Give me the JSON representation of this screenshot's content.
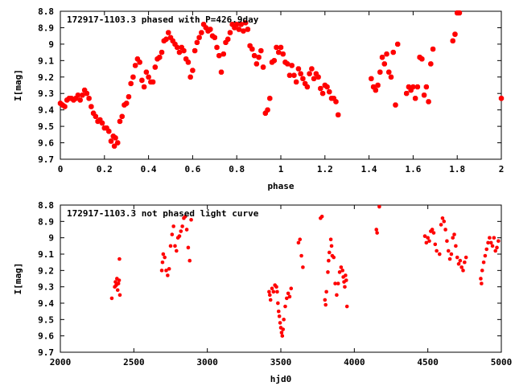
{
  "chart_data": [
    {
      "type": "scatter",
      "title": "172917-1103.3 phased with P=426.9day",
      "xlabel": "phase",
      "ylabel": "I[mag]",
      "xlim": [
        0,
        2
      ],
      "ylim": [
        9.7,
        8.8
      ],
      "y_inverted": true,
      "x_ticks": [
        0,
        0.2,
        0.4,
        0.6,
        0.8,
        1,
        1.2,
        1.4,
        1.6,
        1.8,
        2
      ],
      "x_tick_labels": [
        "0",
        "0.2",
        "0.4",
        "0.6",
        "0.8",
        "1",
        "1.2",
        "1.4",
        "1.6",
        "1.8",
        "2"
      ],
      "y_ticks": [
        8.8,
        8.9,
        9.0,
        9.1,
        9.2,
        9.3,
        9.4,
        9.5,
        9.6,
        9.7
      ],
      "y_tick_labels": [
        "8.8",
        "8.9",
        "9",
        "9.1",
        "9.2",
        "9.3",
        "9.4",
        "9.5",
        "9.6",
        "9.7"
      ],
      "grid": false,
      "marker_color": "#ff0000",
      "points": [
        [
          0.0,
          9.36
        ],
        [
          0.01,
          9.37
        ],
        [
          0.02,
          9.38
        ],
        [
          0.03,
          9.34
        ],
        [
          0.04,
          9.33
        ],
        [
          0.05,
          9.33
        ],
        [
          0.06,
          9.34
        ],
        [
          0.07,
          9.33
        ],
        [
          0.08,
          9.31
        ],
        [
          0.09,
          9.34
        ],
        [
          0.1,
          9.31
        ],
        [
          0.11,
          9.28
        ],
        [
          0.12,
          9.3
        ],
        [
          0.13,
          9.33
        ],
        [
          0.14,
          9.38
        ],
        [
          0.15,
          9.42
        ],
        [
          0.16,
          9.44
        ],
        [
          0.17,
          9.47
        ],
        [
          0.18,
          9.46
        ],
        [
          0.19,
          9.48
        ],
        [
          0.2,
          9.51
        ],
        [
          0.21,
          9.51
        ],
        [
          0.22,
          9.53
        ],
        [
          0.23,
          9.59
        ],
        [
          0.24,
          9.56
        ],
        [
          0.245,
          9.62
        ],
        [
          0.25,
          9.57
        ],
        [
          0.26,
          9.6
        ],
        [
          0.27,
          9.47
        ],
        [
          0.28,
          9.44
        ],
        [
          0.29,
          9.37
        ],
        [
          0.3,
          9.36
        ],
        [
          0.31,
          9.32
        ],
        [
          0.32,
          9.24
        ],
        [
          0.33,
          9.2
        ],
        [
          0.34,
          9.13
        ],
        [
          0.35,
          9.09
        ],
        [
          0.36,
          9.11
        ],
        [
          0.37,
          9.22
        ],
        [
          0.38,
          9.26
        ],
        [
          0.39,
          9.17
        ],
        [
          0.4,
          9.2
        ],
        [
          0.41,
          9.23
        ],
        [
          0.42,
          9.23
        ],
        [
          0.43,
          9.14
        ],
        [
          0.44,
          9.09
        ],
        [
          0.45,
          9.08
        ],
        [
          0.46,
          9.05
        ],
        [
          0.47,
          8.98
        ],
        [
          0.48,
          8.97
        ],
        [
          0.49,
          8.93
        ],
        [
          0.5,
          8.96
        ],
        [
          0.51,
          8.98
        ],
        [
          0.52,
          9.0
        ],
        [
          0.53,
          9.02
        ],
        [
          0.54,
          9.05
        ],
        [
          0.55,
          9.02
        ],
        [
          0.56,
          9.04
        ],
        [
          0.57,
          9.09
        ],
        [
          0.58,
          9.11
        ],
        [
          0.59,
          9.2
        ],
        [
          0.6,
          9.16
        ],
        [
          0.61,
          9.04
        ],
        [
          0.62,
          8.99
        ],
        [
          0.63,
          8.96
        ],
        [
          0.64,
          8.93
        ],
        [
          0.65,
          8.88
        ],
        [
          0.66,
          8.9
        ],
        [
          0.67,
          8.92
        ],
        [
          0.68,
          8.91
        ],
        [
          0.69,
          8.95
        ],
        [
          0.7,
          8.96
        ],
        [
          0.71,
          9.02
        ],
        [
          0.72,
          9.07
        ],
        [
          0.73,
          9.17
        ],
        [
          0.74,
          9.06
        ],
        [
          0.75,
          8.99
        ],
        [
          0.76,
          8.97
        ],
        [
          0.77,
          8.93
        ],
        [
          0.78,
          8.88
        ],
        [
          0.79,
          8.9
        ],
        [
          0.8,
          8.88
        ],
        [
          0.81,
          8.91
        ],
        [
          0.82,
          8.88
        ],
        [
          0.83,
          8.92
        ],
        [
          0.84,
          8.87
        ],
        [
          0.85,
          8.91
        ],
        [
          0.86,
          9.01
        ],
        [
          0.87,
          9.03
        ],
        [
          0.88,
          9.07
        ],
        [
          0.89,
          9.12
        ],
        [
          0.9,
          9.08
        ],
        [
          0.91,
          9.04
        ],
        [
          0.92,
          9.14
        ],
        [
          0.93,
          9.42
        ],
        [
          0.94,
          9.4
        ],
        [
          0.95,
          9.33
        ],
        [
          0.96,
          9.11
        ],
        [
          0.97,
          9.1
        ],
        [
          0.98,
          9.02
        ],
        [
          0.99,
          9.05
        ],
        [
          1.0,
          9.02
        ],
        [
          1.01,
          9.06
        ],
        [
          1.02,
          9.11
        ],
        [
          1.03,
          9.12
        ],
        [
          1.04,
          9.19
        ],
        [
          1.05,
          9.13
        ],
        [
          1.06,
          9.19
        ],
        [
          1.07,
          9.23
        ],
        [
          1.08,
          9.15
        ],
        [
          1.09,
          9.18
        ],
        [
          1.1,
          9.21
        ],
        [
          1.11,
          9.24
        ],
        [
          1.12,
          9.26
        ],
        [
          1.13,
          9.18
        ],
        [
          1.14,
          9.15
        ],
        [
          1.15,
          9.21
        ],
        [
          1.16,
          9.18
        ],
        [
          1.17,
          9.2
        ],
        [
          1.18,
          9.27
        ],
        [
          1.19,
          9.3
        ],
        [
          1.2,
          9.25
        ],
        [
          1.21,
          9.26
        ],
        [
          1.22,
          9.29
        ],
        [
          1.23,
          9.33
        ],
        [
          1.24,
          9.33
        ],
        [
          1.25,
          9.35
        ],
        [
          1.26,
          9.43
        ],
        [
          1.41,
          9.21
        ],
        [
          1.42,
          9.26
        ],
        [
          1.43,
          9.28
        ],
        [
          1.44,
          9.25
        ],
        [
          1.45,
          9.17
        ],
        [
          1.46,
          9.08
        ],
        [
          1.47,
          9.12
        ],
        [
          1.48,
          9.06
        ],
        [
          1.49,
          9.17
        ],
        [
          1.5,
          9.2
        ],
        [
          1.51,
          9.05
        ],
        [
          1.52,
          9.37
        ],
        [
          1.53,
          9.0
        ],
        [
          1.57,
          9.3
        ],
        [
          1.58,
          9.26
        ],
        [
          1.59,
          9.28
        ],
        [
          1.6,
          9.26
        ],
        [
          1.61,
          9.33
        ],
        [
          1.62,
          9.26
        ],
        [
          1.63,
          9.08
        ],
        [
          1.64,
          9.09
        ],
        [
          1.65,
          9.31
        ],
        [
          1.66,
          9.26
        ],
        [
          1.67,
          9.35
        ],
        [
          1.68,
          9.12
        ],
        [
          1.69,
          9.03
        ],
        [
          1.78,
          8.98
        ],
        [
          1.79,
          8.94
        ],
        [
          1.8,
          8.81
        ],
        [
          1.81,
          8.81
        ],
        [
          2.0,
          9.33
        ]
      ]
    },
    {
      "type": "scatter",
      "title": "172917-1103.3 not phased light curve",
      "xlabel": "hjd0",
      "ylabel": "I[mag]",
      "xlim": [
        2000,
        5000
      ],
      "ylim": [
        9.7,
        8.8
      ],
      "y_inverted": true,
      "x_ticks": [
        2000,
        2500,
        3000,
        3500,
        4000,
        4500,
        5000
      ],
      "x_tick_labels": [
        "2000",
        "2500",
        "3000",
        "3500",
        "4000",
        "4500",
        "5000"
      ],
      "y_ticks": [
        8.8,
        8.9,
        9.0,
        9.1,
        9.2,
        9.3,
        9.4,
        9.5,
        9.6,
        9.7
      ],
      "y_tick_labels": [
        "8.8",
        "8.9",
        "9",
        "9.1",
        "9.2",
        "9.3",
        "9.4",
        "9.5",
        "9.6",
        "9.7"
      ],
      "grid": false,
      "marker_color": "#ff0000",
      "points": [
        [
          2350,
          9.37
        ],
        [
          2370,
          9.3
        ],
        [
          2375,
          9.27
        ],
        [
          2380,
          9.29
        ],
        [
          2385,
          9.25
        ],
        [
          2390,
          9.32
        ],
        [
          2395,
          9.28
        ],
        [
          2400,
          9.26
        ],
        [
          2402,
          9.13
        ],
        [
          2405,
          9.35
        ],
        [
          2690,
          9.2
        ],
        [
          2695,
          9.15
        ],
        [
          2700,
          9.1
        ],
        [
          2710,
          9.12
        ],
        [
          2720,
          9.2
        ],
        [
          2730,
          9.23
        ],
        [
          2740,
          9.19
        ],
        [
          2750,
          9.05
        ],
        [
          2760,
          8.98
        ],
        [
          2770,
          8.93
        ],
        [
          2780,
          9.05
        ],
        [
          2790,
          9.08
        ],
        [
          2800,
          9.0
        ],
        [
          2810,
          8.99
        ],
        [
          2820,
          8.96
        ],
        [
          2830,
          8.93
        ],
        [
          2840,
          8.88
        ],
        [
          2850,
          8.87
        ],
        [
          2860,
          8.95
        ],
        [
          2870,
          9.06
        ],
        [
          2880,
          9.14
        ],
        [
          2890,
          8.89
        ],
        [
          3420,
          9.33
        ],
        [
          3425,
          9.35
        ],
        [
          3430,
          9.38
        ],
        [
          3440,
          9.31
        ],
        [
          3450,
          9.33
        ],
        [
          3460,
          9.29
        ],
        [
          3470,
          9.3
        ],
        [
          3475,
          9.33
        ],
        [
          3480,
          9.4
        ],
        [
          3485,
          9.45
        ],
        [
          3490,
          9.48
        ],
        [
          3495,
          9.52
        ],
        [
          3500,
          9.55
        ],
        [
          3505,
          9.58
        ],
        [
          3510,
          9.6
        ],
        [
          3515,
          9.56
        ],
        [
          3520,
          9.5
        ],
        [
          3530,
          9.42
        ],
        [
          3540,
          9.37
        ],
        [
          3550,
          9.34
        ],
        [
          3560,
          9.36
        ],
        [
          3570,
          9.31
        ],
        [
          3620,
          9.03
        ],
        [
          3630,
          9.01
        ],
        [
          3640,
          9.11
        ],
        [
          3650,
          9.18
        ],
        [
          3770,
          8.88
        ],
        [
          3780,
          8.87
        ],
        [
          3800,
          9.38
        ],
        [
          3805,
          9.41
        ],
        [
          3810,
          9.33
        ],
        [
          3820,
          9.21
        ],
        [
          3825,
          9.14
        ],
        [
          3830,
          9.09
        ],
        [
          3840,
          9.01
        ],
        [
          3845,
          9.05
        ],
        [
          3850,
          9.11
        ],
        [
          3860,
          9.12
        ],
        [
          3870,
          9.28
        ],
        [
          3880,
          9.35
        ],
        [
          3890,
          9.28
        ],
        [
          3900,
          9.21
        ],
        [
          3910,
          9.18
        ],
        [
          3920,
          9.2
        ],
        [
          3925,
          9.24
        ],
        [
          3930,
          9.27
        ],
        [
          3935,
          9.3
        ],
        [
          3940,
          9.23
        ],
        [
          3945,
          9.26
        ],
        [
          3950,
          9.42
        ],
        [
          4150,
          8.95
        ],
        [
          4155,
          8.97
        ],
        [
          4170,
          8.81
        ],
        [
          4480,
          8.99
        ],
        [
          4490,
          9.03
        ],
        [
          4500,
          9.0
        ],
        [
          4510,
          9.02
        ],
        [
          4520,
          8.96
        ],
        [
          4530,
          8.95
        ],
        [
          4540,
          8.97
        ],
        [
          4550,
          9.04
        ],
        [
          4560,
          9.08
        ],
        [
          4580,
          9.1
        ],
        [
          4590,
          8.92
        ],
        [
          4600,
          8.88
        ],
        [
          4610,
          8.9
        ],
        [
          4620,
          8.95
        ],
        [
          4630,
          9.02
        ],
        [
          4640,
          9.08
        ],
        [
          4650,
          9.13
        ],
        [
          4660,
          9.1
        ],
        [
          4670,
          9.0
        ],
        [
          4680,
          8.98
        ],
        [
          4690,
          9.05
        ],
        [
          4700,
          9.12
        ],
        [
          4710,
          9.16
        ],
        [
          4720,
          9.14
        ],
        [
          4730,
          9.18
        ],
        [
          4740,
          9.2
        ],
        [
          4750,
          9.15
        ],
        [
          4760,
          9.12
        ],
        [
          4860,
          9.25
        ],
        [
          4865,
          9.28
        ],
        [
          4870,
          9.2
        ],
        [
          4880,
          9.15
        ],
        [
          4890,
          9.11
        ],
        [
          4900,
          9.07
        ],
        [
          4910,
          9.03
        ],
        [
          4920,
          9.0
        ],
        [
          4930,
          9.03
        ],
        [
          4940,
          9.05
        ],
        [
          4950,
          9.0
        ],
        [
          4960,
          9.08
        ],
        [
          4970,
          9.06
        ],
        [
          4980,
          9.02
        ]
      ]
    }
  ]
}
